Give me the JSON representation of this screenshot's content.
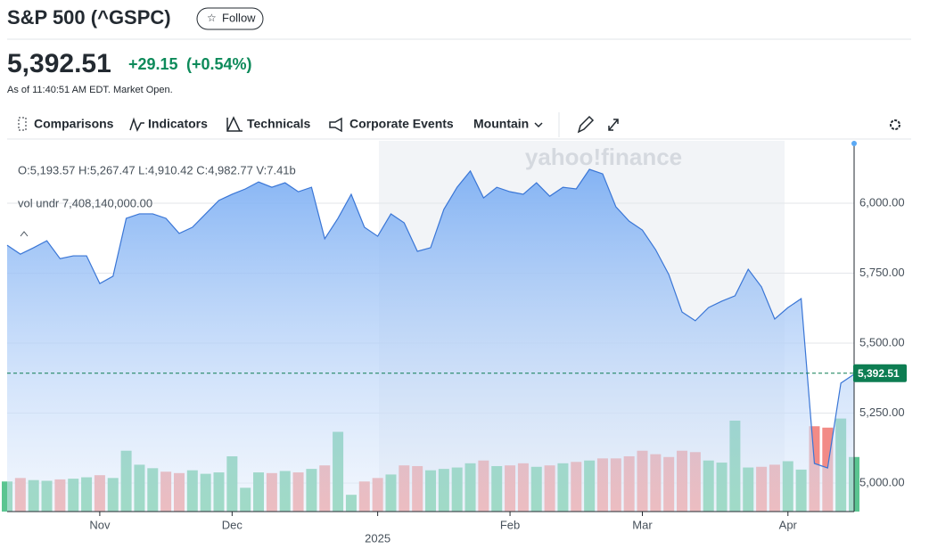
{
  "header": {
    "title": "S&P 500 (^GSPC)",
    "follow": "Follow",
    "price": "5,392.51",
    "change": "+29.15",
    "change_pct": "(+0.54%)",
    "as_of": "As of 11:40:51 AM EDT. Market Open."
  },
  "toolbar": {
    "items": [
      "Comparisons",
      "Indicators",
      "Technicals",
      "Corporate Events",
      "Mountain"
    ]
  },
  "chart_data": {
    "type": "line",
    "ohlc": "O:5,193.57  H:5,267.47  L:4,910.42  C:4,982.77  V:7.41b",
    "volume_label": "vol undr  7,408,140,000.00",
    "watermark": "yahoo!finance",
    "categories": [
      null,
      null,
      null,
      null,
      null,
      null,
      null,
      "Nov",
      null,
      null,
      null,
      null,
      null,
      null,
      null,
      null,
      null,
      "Dec",
      null,
      null,
      null,
      null,
      null,
      null,
      null,
      null,
      null,
      null,
      "2025",
      null,
      null,
      null,
      null,
      null,
      null,
      null,
      null,
      null,
      "Feb",
      null,
      null,
      null,
      null,
      null,
      null,
      null,
      null,
      null,
      "Mar",
      null,
      null,
      null,
      null,
      null,
      null,
      null,
      null,
      null,
      null,
      "Apr",
      null,
      null,
      null,
      null,
      null
    ],
    "series": [
      {
        "name": "Price",
        "color": "#3a76d6",
        "values": [
          5850,
          5818,
          5841,
          5866,
          5802,
          5812,
          5812,
          5713,
          5739,
          5946,
          5962,
          5962,
          5946,
          5892,
          5914,
          5962,
          6010,
          6032,
          6051,
          6076,
          6057,
          6073,
          6041,
          6057,
          5873,
          5946,
          6032,
          5914,
          5882,
          5962,
          5930,
          5828,
          5841,
          5978,
          6057,
          6115,
          6019,
          6057,
          6041,
          6032,
          6073,
          6025,
          6057,
          6051,
          6121,
          6105,
          5987,
          5936,
          5904,
          5834,
          5745,
          5611,
          5580,
          5627,
          5650,
          5669,
          5764,
          5701,
          5586,
          5627,
          5659,
          5070,
          5054,
          5357,
          5389
        ]
      },
      {
        "name": "Volume",
        "values": [
          4.3,
          4.8,
          4.5,
          4.4,
          4.6,
          4.7,
          4.9,
          5.2,
          4.8,
          8.7,
          6.7,
          6.2,
          5.7,
          5.5,
          5.9,
          5.4,
          5.6,
          7.9,
          3.4,
          5.6,
          5.5,
          5.8,
          5.6,
          6.1,
          6.6,
          11.4,
          2.4,
          4.3,
          4.8,
          5.3,
          6.6,
          6.5,
          5.9,
          6.1,
          6.3,
          6.9,
          7.3,
          6.5,
          6.6,
          6.9,
          6.4,
          6.6,
          6.9,
          7.1,
          7.3,
          7.6,
          7.6,
          7.9,
          8.7,
          8.2,
          7.8,
          8.7,
          8.5,
          7.3,
          7.0,
          13.0,
          6.3,
          6.4,
          6.7,
          7.2,
          6.0,
          12.2,
          12.0,
          13.3,
          7.8
        ]
      }
    ],
    "up_color": "#5bc591",
    "down_color": "#f28b86",
    "ylim": [
      4898,
      6223
    ],
    "yticks": [
      {
        "value": 5000,
        "label": "5,000.00"
      },
      {
        "value": 5250,
        "label": "5,250.00"
      },
      {
        "value": 5500,
        "label": "5,500.00"
      },
      {
        "value": 5750,
        "label": "5,750.00"
      },
      {
        "value": 6000,
        "label": "6,000.00"
      }
    ],
    "volume_lim": [
      0,
      53
    ],
    "current": {
      "value": 5392.51,
      "label": "5,392.51"
    },
    "grid": true
  }
}
